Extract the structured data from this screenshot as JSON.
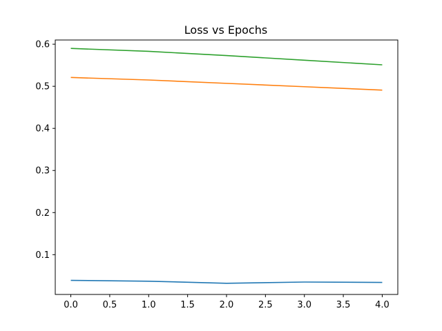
{
  "chart_data": {
    "type": "line",
    "title": "Loss vs Epochs",
    "xlabel": "",
    "ylabel": "",
    "xlim": [
      -0.2,
      4.2
    ],
    "ylim": [
      0.0055,
      0.61
    ],
    "x_ticks": [
      0.0,
      0.5,
      1.0,
      1.5,
      2.0,
      2.5,
      3.0,
      3.5,
      4.0
    ],
    "x_tick_labels": [
      "0.0",
      "0.5",
      "1.0",
      "1.5",
      "2.0",
      "2.5",
      "3.0",
      "3.5",
      "4.0"
    ],
    "y_ticks": [
      0.1,
      0.2,
      0.3,
      0.4,
      0.5,
      0.6
    ],
    "y_tick_labels": [
      "0.1",
      "0.2",
      "0.3",
      "0.4",
      "0.5",
      "0.6"
    ],
    "grid": false,
    "legend": false,
    "x": [
      0,
      1,
      2,
      3,
      4
    ],
    "series": [
      {
        "color": "#1f77b4",
        "values": [
          0.039,
          0.037,
          0.032,
          0.035,
          0.034
        ]
      },
      {
        "color": "#ff7f0e",
        "values": [
          0.521,
          0.515,
          0.507,
          0.499,
          0.491
        ]
      },
      {
        "color": "#2ca02c",
        "values": [
          0.59,
          0.583,
          0.573,
          0.562,
          0.551
        ]
      }
    ]
  }
}
